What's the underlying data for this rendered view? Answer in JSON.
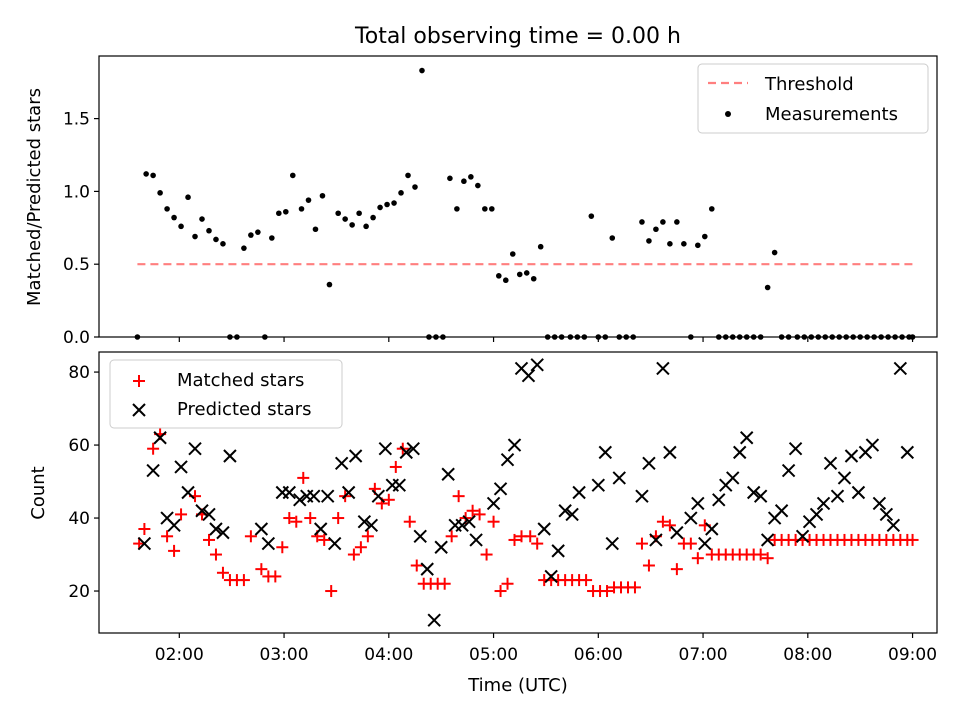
{
  "chart_data": [
    {
      "type": "scatter",
      "title": "Total observing time = 0.00 h",
      "xlabel": "",
      "ylabel": "Matched/Predicted stars",
      "xlim": [
        "01:14",
        "09:14"
      ],
      "ylim": [
        0,
        1.93
      ],
      "yticks": [
        0.0,
        0.5,
        1.0,
        1.5
      ],
      "ytick_labels": [
        "0.0",
        "0.5",
        "1.0",
        "1.5"
      ],
      "grid": false,
      "legend_position": "top-right",
      "threshold": {
        "name": "Threshold",
        "value": 0.5,
        "x_start": "01:36",
        "x_end": "09:00",
        "color": "#ff7f7f"
      },
      "series": [
        {
          "name": "Measurements",
          "marker": "dot",
          "color": "#000000",
          "x": [
            "01:36",
            "01:41",
            "01:45",
            "01:49",
            "01:53",
            "01:57",
            "02:01",
            "02:05",
            "02:09",
            "02:13",
            "02:17",
            "02:21",
            "02:25",
            "02:29",
            "02:33",
            "02:37",
            "02:41",
            "02:45",
            "02:49",
            "02:53",
            "02:57",
            "03:01",
            "03:05",
            "03:10",
            "03:14",
            "03:18",
            "03:22",
            "03:26",
            "03:31",
            "03:35",
            "03:39",
            "03:43",
            "03:47",
            "03:51",
            "03:55",
            "03:59",
            "04:03",
            "04:07",
            "04:11",
            "04:15",
            "04:19",
            "04:23",
            "04:27",
            "04:31",
            "04:35",
            "04:39",
            "04:43",
            "04:47",
            "04:51",
            "04:55",
            "04:59",
            "05:03",
            "05:07",
            "05:11",
            "05:15",
            "05:19",
            "05:23",
            "05:27",
            "05:31",
            "05:35",
            "05:39",
            "05:44",
            "05:48",
            "05:52",
            "05:56",
            "06:00",
            "06:04",
            "06:08",
            "06:12",
            "06:16",
            "06:20",
            "06:25",
            "06:29",
            "06:33",
            "06:37",
            "06:41",
            "06:45",
            "06:49",
            "06:53",
            "06:57",
            "07:01",
            "07:05",
            "07:09",
            "07:13",
            "07:17",
            "07:21",
            "07:25",
            "07:29",
            "07:33",
            "07:37",
            "07:41",
            "07:45",
            "07:49",
            "07:54",
            "07:58",
            "08:02",
            "08:06",
            "08:10",
            "08:14",
            "08:18",
            "08:22",
            "08:26",
            "08:30",
            "08:34",
            "08:38",
            "08:42",
            "08:46",
            "08:50",
            "08:54",
            "08:58",
            "09:00"
          ],
          "y": [
            0.0,
            1.12,
            1.11,
            0.99,
            0.88,
            0.82,
            0.76,
            0.96,
            0.69,
            0.81,
            0.73,
            0.67,
            0.64,
            0.0,
            0.0,
            0.61,
            0.7,
            0.72,
            0.0,
            0.68,
            0.85,
            0.86,
            1.11,
            0.88,
            0.94,
            0.74,
            0.97,
            0.36,
            0.85,
            0.81,
            0.77,
            0.85,
            0.76,
            0.82,
            0.89,
            0.91,
            0.92,
            0.99,
            1.11,
            1.03,
            1.83,
            0.0,
            0.0,
            0.0,
            1.09,
            0.88,
            1.07,
            1.1,
            1.04,
            0.88,
            0.88,
            0.42,
            0.39,
            0.57,
            0.43,
            0.44,
            0.4,
            0.62,
            0.0,
            0.0,
            0.0,
            0.0,
            0.0,
            0.0,
            0.83,
            0.0,
            0.0,
            0.68,
            0.0,
            0.0,
            0.0,
            0.79,
            0.66,
            0.74,
            0.79,
            0.64,
            0.79,
            0.64,
            0.0,
            0.63,
            0.69,
            0.88,
            0.0,
            0.0,
            0.0,
            0.0,
            0.0,
            0.0,
            0.0,
            0.34,
            0.58,
            0.0,
            0.0,
            0.0,
            0.0,
            0.0,
            0.0,
            0.0,
            0.0,
            0.0,
            0.0,
            0.0,
            0.0,
            0.0,
            0.0,
            0.0,
            0.0,
            0.0,
            0.0,
            0.0,
            0.0
          ]
        }
      ]
    },
    {
      "type": "scatter",
      "title": "",
      "xlabel": "Time (UTC)",
      "ylabel": "Count",
      "xlim": [
        "01:14",
        "09:14"
      ],
      "ylim": [
        8.5,
        85.5
      ],
      "yticks": [
        20,
        40,
        60,
        80
      ],
      "ytick_labels": [
        "20",
        "40",
        "60",
        "80"
      ],
      "xticks": [
        "02:00",
        "03:00",
        "04:00",
        "05:00",
        "06:00",
        "07:00",
        "08:00",
        "09:00"
      ],
      "xtick_labels": [
        "02:00",
        "03:00",
        "04:00",
        "05:00",
        "06:00",
        "07:00",
        "08:00",
        "09:00"
      ],
      "grid": false,
      "legend_position": "top-left",
      "series": [
        {
          "name": "Matched stars",
          "marker": "plus",
          "color": "#ff0000",
          "x": [
            "01:37",
            "01:40",
            "01:45",
            "01:49",
            "01:53",
            "01:57",
            "02:01",
            "02:09",
            "02:13",
            "02:17",
            "02:21",
            "02:25",
            "02:29",
            "02:33",
            "02:37",
            "02:41",
            "02:47",
            "02:51",
            "02:55",
            "02:59",
            "03:03",
            "03:07",
            "03:11",
            "03:15",
            "03:19",
            "03:23",
            "03:27",
            "03:31",
            "03:35",
            "03:40",
            "03:44",
            "03:48",
            "03:52",
            "03:56",
            "04:00",
            "04:04",
            "04:08",
            "04:12",
            "04:16",
            "04:20",
            "04:24",
            "04:28",
            "04:32",
            "04:36",
            "04:40",
            "04:44",
            "04:48",
            "04:52",
            "04:56",
            "05:00",
            "05:04",
            "05:08",
            "05:12",
            "05:16",
            "05:21",
            "05:25",
            "05:29",
            "05:33",
            "05:37",
            "05:41",
            "05:45",
            "05:49",
            "05:53",
            "05:57",
            "06:01",
            "06:05",
            "06:09",
            "06:13",
            "06:17",
            "06:21",
            "06:25",
            "06:29",
            "06:33",
            "06:37",
            "06:41",
            "06:45",
            "06:49",
            "06:53",
            "06:57",
            "07:01",
            "07:05",
            "07:09",
            "07:13",
            "07:17",
            "07:21",
            "07:25",
            "07:29",
            "07:33",
            "07:37",
            "07:41",
            "07:45",
            "07:49",
            "07:53",
            "07:57",
            "08:01",
            "08:05",
            "08:09",
            "08:13",
            "08:17",
            "08:21",
            "08:25",
            "08:29",
            "08:33",
            "08:37",
            "08:41",
            "08:45",
            "08:49",
            "08:53",
            "08:57",
            "09:00"
          ],
          "y": [
            33,
            37,
            59,
            63,
            35,
            31,
            41,
            46,
            41,
            34,
            30,
            25,
            23,
            23,
            23,
            35,
            26,
            24,
            24,
            32,
            40,
            39,
            51,
            40,
            35,
            34,
            20,
            40,
            46,
            30,
            32,
            35,
            48,
            44,
            45,
            54,
            59,
            39,
            27,
            22,
            22,
            22,
            22,
            35,
            46,
            40,
            42,
            41,
            30,
            39,
            20,
            22,
            34,
            35,
            35,
            33,
            23,
            23,
            23,
            23,
            23,
            23,
            23,
            20,
            20,
            20,
            21,
            21,
            21,
            21,
            33,
            27,
            35,
            39,
            38,
            26,
            33,
            33,
            29,
            38,
            30,
            30,
            30,
            30,
            30,
            30,
            30,
            30,
            29,
            34,
            34,
            34,
            34,
            34,
            34,
            34,
            34,
            34,
            34,
            34,
            34,
            34,
            34,
            34,
            34,
            34,
            34,
            34,
            34,
            34
          ]
        },
        {
          "name": "Predicted stars",
          "marker": "x",
          "color": "#000000",
          "x": [
            "01:40",
            "01:45",
            "01:49",
            "01:53",
            "01:57",
            "02:01",
            "02:05",
            "02:09",
            "02:13",
            "02:17",
            "02:21",
            "02:25",
            "02:29",
            "02:47",
            "02:51",
            "02:59",
            "03:03",
            "03:09",
            "03:13",
            "03:17",
            "03:21",
            "03:25",
            "03:29",
            "03:33",
            "03:37",
            "03:41",
            "03:46",
            "03:50",
            "03:54",
            "03:58",
            "04:02",
            "04:06",
            "04:10",
            "04:14",
            "04:18",
            "04:22",
            "04:26",
            "04:30",
            "04:34",
            "04:38",
            "04:42",
            "04:46",
            "04:50",
            "05:00",
            "05:04",
            "05:08",
            "05:12",
            "05:16",
            "05:20",
            "05:25",
            "05:29",
            "05:33",
            "05:37",
            "05:41",
            "05:45",
            "05:49",
            "06:00",
            "06:04",
            "06:08",
            "06:12",
            "06:25",
            "06:29",
            "06:33",
            "06:37",
            "06:41",
            "06:45",
            "06:53",
            "06:57",
            "07:01",
            "07:05",
            "07:09",
            "07:13",
            "07:17",
            "07:21",
            "07:25",
            "07:29",
            "07:33",
            "07:37",
            "07:41",
            "07:45",
            "07:49",
            "07:53",
            "07:57",
            "08:01",
            "08:05",
            "08:09",
            "08:13",
            "08:17",
            "08:21",
            "08:25",
            "08:29",
            "08:33",
            "08:37",
            "08:41",
            "08:45",
            "08:49",
            "08:53",
            "08:57"
          ],
          "y": [
            33,
            53,
            62,
            40,
            38,
            54,
            47,
            59,
            42,
            41,
            37,
            36,
            57,
            37,
            33,
            47,
            47,
            45,
            46,
            46,
            37,
            46,
            33,
            55,
            47,
            57,
            39,
            38,
            46,
            59,
            49,
            49,
            58,
            59,
            35,
            26,
            12,
            32,
            52,
            38,
            38,
            39,
            34,
            44,
            48,
            56,
            60,
            81,
            79,
            82,
            37,
            24,
            31,
            42,
            41,
            47,
            49,
            58,
            33,
            51,
            46,
            55,
            34,
            81,
            58,
            36,
            40,
            44,
            33,
            37,
            45,
            49,
            51,
            58,
            62,
            47,
            46,
            34,
            40,
            42,
            53,
            59,
            35,
            39,
            41,
            44,
            55,
            46,
            51,
            57,
            47,
            58,
            60,
            44,
            41,
            38,
            81,
            58
          ]
        }
      ]
    }
  ]
}
